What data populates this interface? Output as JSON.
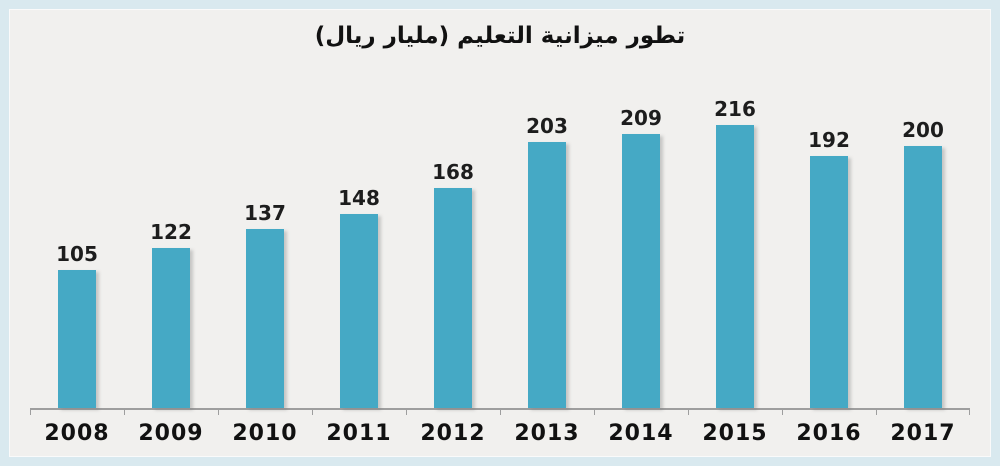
{
  "chart_data": {
    "type": "bar",
    "title": "تطور ميزانية التعليم (مليار ريال)",
    "categories": [
      "2008",
      "2009",
      "2010",
      "2011",
      "2012",
      "2013",
      "2014",
      "2015",
      "2016",
      "2017"
    ],
    "values": [
      105,
      122,
      137,
      148,
      168,
      203,
      209,
      216,
      192,
      200
    ],
    "xlabel": "",
    "ylabel": "",
    "ylim": [
      0,
      230
    ],
    "grid": false,
    "legend": "none",
    "data_labels_shown": true,
    "colors": {
      "bar_fill": "#45a9c5",
      "plot_background": "#f1f0ee",
      "outer_border": "#d9e9ef",
      "axis_line": "#9e9e9e",
      "label_text": "#1d1d1d"
    }
  }
}
